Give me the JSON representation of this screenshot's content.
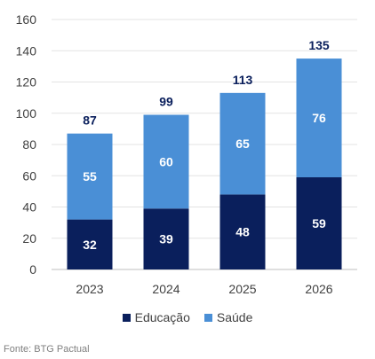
{
  "chart_data": {
    "type": "bar",
    "stacked": true,
    "categories": [
      "2023",
      "2024",
      "2025",
      "2026"
    ],
    "series": [
      {
        "name": "Educação",
        "values": [
          32,
          39,
          48,
          59
        ],
        "color": "#0a1f5c",
        "label_color": "#ffffff"
      },
      {
        "name": "Saúde",
        "values": [
          55,
          60,
          65,
          76
        ],
        "color": "#4a8fd6",
        "label_color": "#ffffff"
      }
    ],
    "totals": [
      87,
      99,
      113,
      135
    ],
    "ylim": [
      0,
      160
    ],
    "yticks": [
      0,
      20,
      40,
      60,
      80,
      100,
      120,
      140,
      160
    ],
    "grid": true,
    "legend_position": "bottom",
    "source": "Fonte: BTG Pactual"
  }
}
